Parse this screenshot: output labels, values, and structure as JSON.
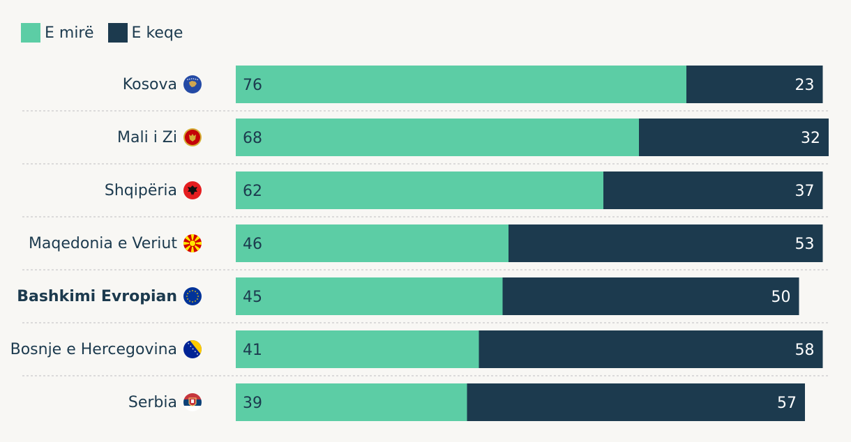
{
  "legend": [
    {
      "label": "E mirë",
      "color": "#5ccda5"
    },
    {
      "label": "E keqe",
      "color": "#1c3a4e"
    }
  ],
  "chart_data": {
    "type": "bar",
    "orientation": "horizontal",
    "stacked": true,
    "categories": [
      "Kosova",
      "Mali i Zi",
      "Shqipëria",
      "Maqedonia e Veriut",
      "Bashkimi Evropian",
      "Bosnje e Hercegovina",
      "Serbia"
    ],
    "highlighted_category": "Bashkimi Evropian",
    "series": [
      {
        "name": "E mirë",
        "color": "#5ccda5",
        "values": [
          76,
          68,
          62,
          46,
          45,
          41,
          39
        ]
      },
      {
        "name": "E keqe",
        "color": "#1c3a4e",
        "values": [
          23,
          32,
          37,
          53,
          50,
          58,
          57
        ]
      }
    ],
    "xlim": [
      0,
      100
    ],
    "grid": false,
    "legend_position": "top-left",
    "flags": [
      "kosovo-flag-icon",
      "montenegro-flag-icon",
      "albania-flag-icon",
      "north-macedonia-flag-icon",
      "eu-flag-icon",
      "bosnia-flag-icon",
      "serbia-flag-icon"
    ]
  }
}
